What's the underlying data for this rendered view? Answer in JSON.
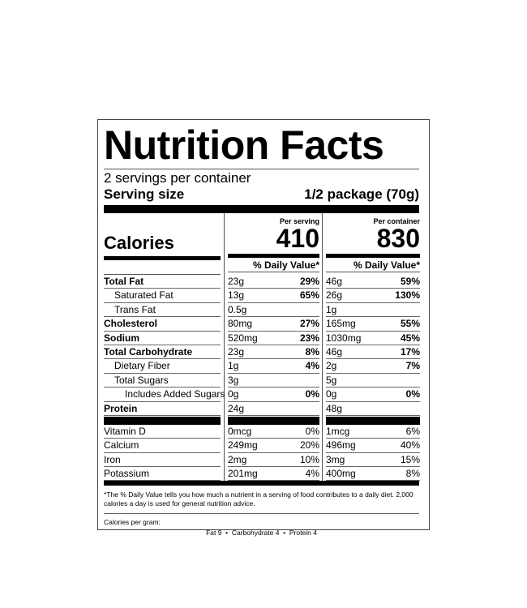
{
  "title": "Nutrition Facts",
  "servings_per_container": "2 servings per container",
  "serving_size_label": "Serving size",
  "serving_size_value": "1/2 package (70g)",
  "calories_label": "Calories",
  "per_serving_label": "Per serving",
  "per_container_label": "Per container",
  "calories_per_serving": "410",
  "calories_per_container": "830",
  "dv_header": "% Daily Value*",
  "nutrients": [
    {
      "name": "Total Fat",
      "bold": true,
      "indent": 0,
      "s_amt": "23g",
      "s_dv": "29%",
      "c_amt": "46g",
      "c_dv": "59%"
    },
    {
      "name": "Saturated Fat",
      "bold": false,
      "indent": 1,
      "s_amt": "13g",
      "s_dv": "65%",
      "c_amt": "26g",
      "c_dv": "130%"
    },
    {
      "name": "Trans Fat",
      "bold": false,
      "indent": 1,
      "s_amt": "0.5g",
      "s_dv": "",
      "c_amt": "1g",
      "c_dv": ""
    },
    {
      "name": "Cholesterol",
      "bold": true,
      "indent": 0,
      "s_amt": "80mg",
      "s_dv": "27%",
      "c_amt": "165mg",
      "c_dv": "55%"
    },
    {
      "name": "Sodium",
      "bold": true,
      "indent": 0,
      "s_amt": "520mg",
      "s_dv": "23%",
      "c_amt": "1030mg",
      "c_dv": "45%"
    },
    {
      "name": "Total Carbohydrate",
      "bold": true,
      "indent": 0,
      "s_amt": "23g",
      "s_dv": "8%",
      "c_amt": "46g",
      "c_dv": "17%"
    },
    {
      "name": "Dietary Fiber",
      "bold": false,
      "indent": 1,
      "s_amt": "1g",
      "s_dv": "4%",
      "c_amt": "2g",
      "c_dv": "7%"
    },
    {
      "name": "Total Sugars",
      "bold": false,
      "indent": 1,
      "s_amt": "3g",
      "s_dv": "",
      "c_amt": "5g",
      "c_dv": ""
    },
    {
      "name": "Includes Added Sugars",
      "bold": false,
      "indent": 2,
      "s_amt": "0g",
      "s_dv": "0%",
      "c_amt": "0g",
      "c_dv": "0%"
    },
    {
      "name": "Protein",
      "bold": true,
      "indent": 0,
      "s_amt": "24g",
      "s_dv": "",
      "c_amt": "48g",
      "c_dv": ""
    }
  ],
  "vitamins": [
    {
      "name": "Vitamin D",
      "s_amt": "0mcg",
      "s_dv": "0%",
      "c_amt": "1mcg",
      "c_dv": "6%"
    },
    {
      "name": "Calcium",
      "s_amt": "249mg",
      "s_dv": "20%",
      "c_amt": "496mg",
      "c_dv": "40%"
    },
    {
      "name": "Iron",
      "s_amt": "2mg",
      "s_dv": "10%",
      "c_amt": "3mg",
      "c_dv": "15%"
    },
    {
      "name": "Potassium",
      "s_amt": "201mg",
      "s_dv": "4%",
      "c_amt": "400mg",
      "c_dv": "8%"
    }
  ],
  "footnote": "*The % Daily Value tells you how much a nutrient in a serving of food contributes to a daily diet. 2,000 calories a day is used for general nutrition advice.",
  "calories_per_gram_label": "Calories per gram:",
  "calories_per_gram": "Fat 9  •  Carbohydrate 4  •  Protein 4"
}
